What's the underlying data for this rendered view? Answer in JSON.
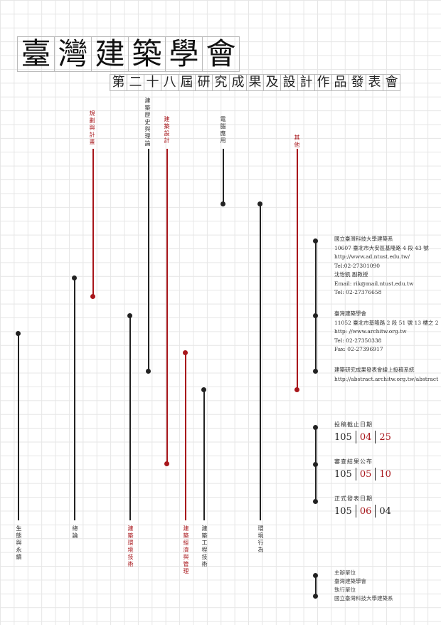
{
  "title": "臺灣建築學會",
  "subtitle": "第二十八屆研究成果及設計作品發表會",
  "categories": {
    "planning": "規劃與計畫",
    "history": "建築歷史與理論",
    "design": "建築設計",
    "computer": "電腦應用",
    "other": "其他",
    "ecology": "生態與永續",
    "general": "總論",
    "environment_tech": "建築環境技術",
    "economics": "建築經濟與管理",
    "engineering": "建築工程技術",
    "behavior": "環境行為"
  },
  "contact": {
    "line1": "國立臺灣科技大學建築系",
    "line2": "10607 臺北市大安區基隆路 4 段 43 號",
    "line3": "http://www.ad.ntust.edu.tw/",
    "line4": "Tel:02-27301090",
    "line5": "沈怡凱 副教授",
    "line6": "Email: rik@mail.ntust.edu.tw",
    "line7": "Tel: 02-27376658"
  },
  "society": {
    "line1": "臺灣建築學會",
    "line2": "11052 臺北市基隆路 2 段 51 號 13 樓之 2",
    "line3": "http: //www.architw.org.tw",
    "line4": "Tel: 02-27350338",
    "line5": "Fax: 02-27396917"
  },
  "submission": {
    "line1": "建築研究成果發表會線上投稿系統",
    "line2": "http://abstract.architw.org.tw/abstract"
  },
  "dates": [
    {
      "label": "投稿截止日期",
      "year": "105",
      "month": "04",
      "day": "25"
    },
    {
      "label": "審查結果公布",
      "year": "105",
      "month": "05",
      "day": "10"
    },
    {
      "label": "正式發表日期",
      "year": "105",
      "month": "06",
      "day": "04"
    }
  ],
  "organizers": {
    "host_label": "主辦單位",
    "host": "臺灣建築學會",
    "exec_label": "執行單位",
    "exec": "國立臺灣科技大學建築系"
  },
  "colors": {
    "accent": "#a8161b",
    "ink": "#222222"
  }
}
